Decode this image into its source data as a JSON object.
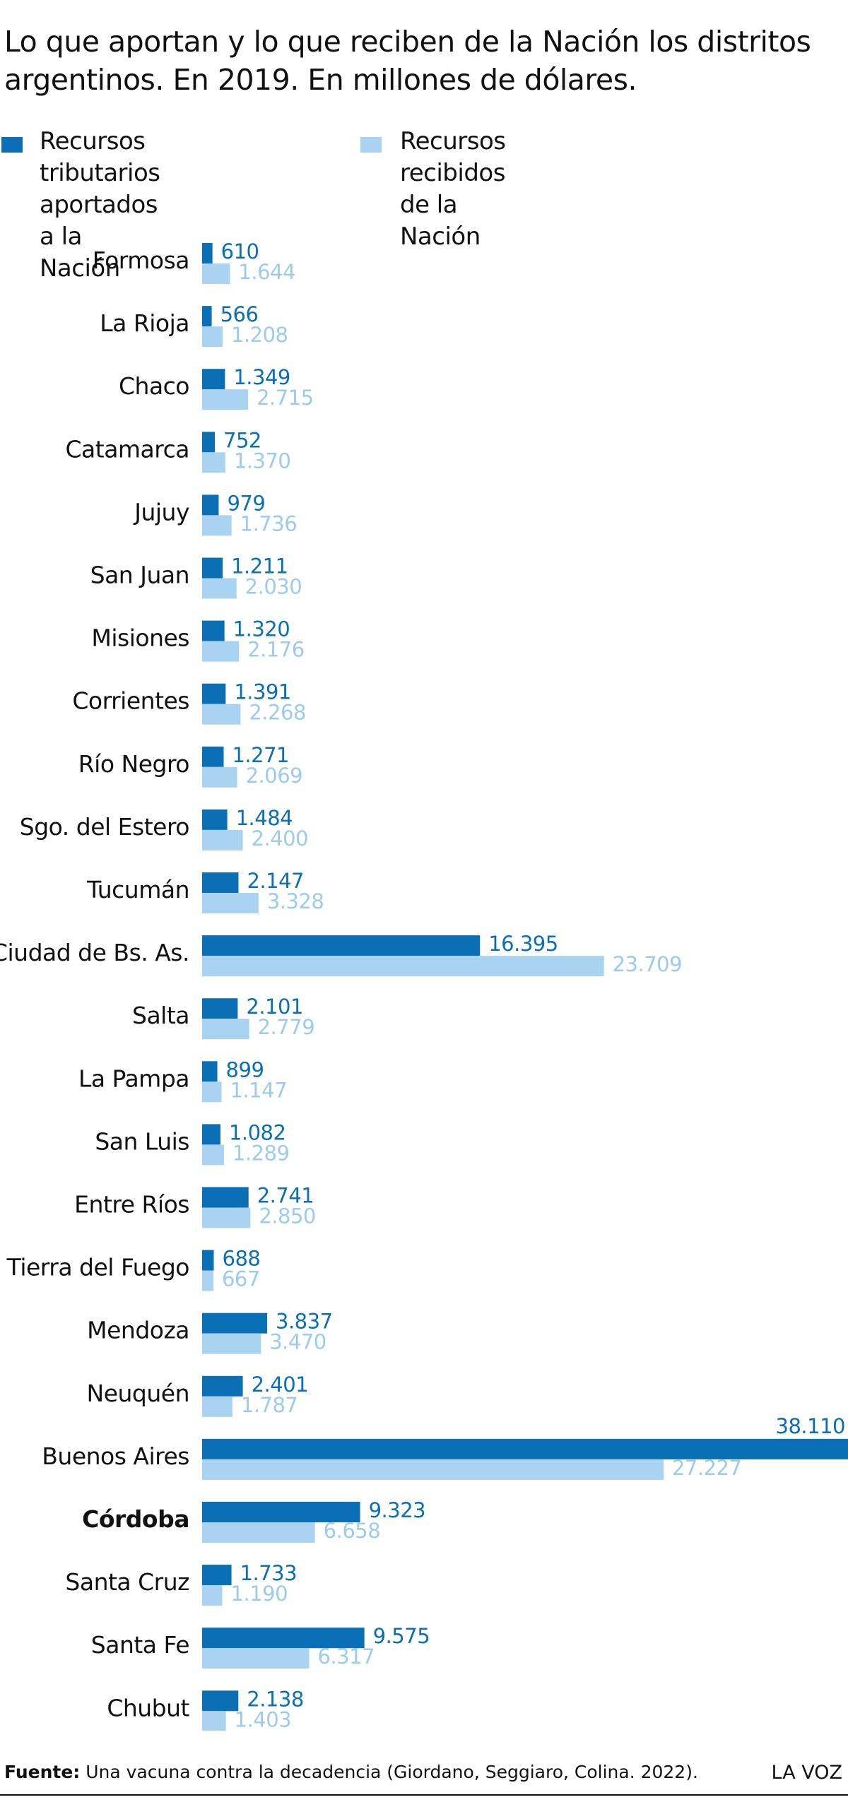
{
  "title": "Lo que aportan y lo que reciben de la Nación los distritos argentinos. En 2019. En millones de dólares.",
  "footer": {
    "source_label": "Fuente:",
    "source_text": "Una vacuna contra la decadencia (Giordano, Seggiaro, Colina. 2022).",
    "brand": "LA VOZ"
  },
  "legend": [
    {
      "label": "Recursos tributarios\naportados a la Nación",
      "color": "#0a6fb5"
    },
    {
      "label": "Recursos recibidos\nde la Nación",
      "color": "#a9d3f0"
    }
  ],
  "chart_data": {
    "type": "bar",
    "orientation": "horizontal",
    "title": "Lo que aportan y lo que reciben de la Nación los distritos argentinos. En 2019. En millones de dólares.",
    "xlim": [
      0,
      38110
    ],
    "grid": false,
    "legend_position": "top-left",
    "highlighted_category": "Córdoba",
    "categories": [
      "Formosa",
      "La Rioja",
      "Chaco",
      "Catamarca",
      "Jujuy",
      "San Juan",
      "Misiones",
      "Corrientes",
      "Río Negro",
      "Sgo. del Estero",
      "Tucumán",
      "Ciudad de Bs. As.",
      "Salta",
      "La Pampa",
      "San Luis",
      "Entre Ríos",
      "Tierra del Fuego",
      "Mendoza",
      "Neuquén",
      "Buenos Aires",
      "Córdoba",
      "Santa Cruz",
      "Santa Fe",
      "Chubut"
    ],
    "series": [
      {
        "name": "Recursos tributarios aportados a la Nación",
        "color": "#0a6fb5",
        "values": [
          610,
          566,
          1349,
          752,
          979,
          1211,
          1320,
          1391,
          1271,
          1484,
          2147,
          16395,
          2101,
          899,
          1082,
          2741,
          688,
          3837,
          2401,
          38110,
          9323,
          1733,
          9575,
          2138
        ],
        "labels": [
          "610",
          "566",
          "1.349",
          "752",
          "979",
          "1.211",
          "1.320",
          "1.391",
          "1.271",
          "1.484",
          "2.147",
          "16.395",
          "2.101",
          "899",
          "1.082",
          "2.741",
          "688",
          "3.837",
          "2.401",
          "38.110",
          "9.323",
          "1.733",
          "9.575",
          "2.138"
        ]
      },
      {
        "name": "Recursos recibidos de la Nación",
        "color": "#a9d3f0",
        "values": [
          1644,
          1208,
          2715,
          1370,
          1736,
          2030,
          2176,
          2268,
          2069,
          2400,
          3328,
          23709,
          2779,
          1147,
          1289,
          2850,
          667,
          3470,
          1787,
          27227,
          6658,
          1190,
          6317,
          1403
        ],
        "labels": [
          "1.644",
          "1.208",
          "2.715",
          "1.370",
          "1.736",
          "2.030",
          "2.176",
          "2.268",
          "2.069",
          "2.400",
          "3.328",
          "23.709",
          "2.779",
          "1.147",
          "1.289",
          "2.850",
          "667",
          "3.470",
          "1.787",
          "27.227",
          "6.658",
          "1.190",
          "6.317",
          "1.403"
        ]
      }
    ]
  }
}
